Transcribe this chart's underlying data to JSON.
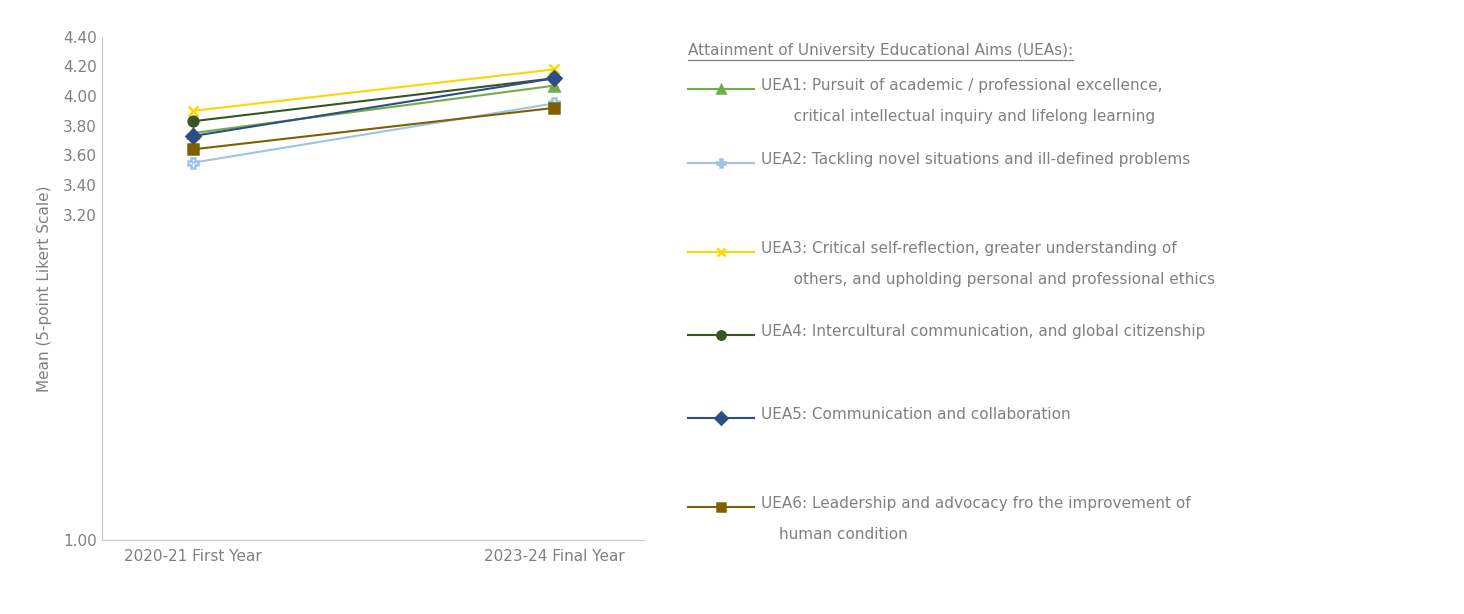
{
  "ylabel": "Mean (5-point Likert Scale)",
  "x_labels": [
    "2020-21 First Year",
    "2023-24 Final Year"
  ],
  "ylim": [
    1.0,
    4.4
  ],
  "yticks": [
    1.0,
    3.2,
    3.4,
    3.6,
    3.8,
    4.0,
    4.2,
    4.4
  ],
  "series": [
    {
      "name_line1": "UEA1: Pursuit of academic / professional excellence,",
      "name_line2": "   critical intellectual inquiry and lifelong learning",
      "values": [
        3.75,
        4.07
      ],
      "color": "#70AD47",
      "marker": "^",
      "linestyle": "-"
    },
    {
      "name_line1": "UEA2: Tackling novel situations and ill-defined problems",
      "name_line2": "",
      "values": [
        3.55,
        3.95
      ],
      "color": "#9DC3E6",
      "marker": "P",
      "linestyle": "-"
    },
    {
      "name_line1": "UEA3: Critical self-reflection, greater understanding of",
      "name_line2": "   others, and upholding personal and professional ethics",
      "values": [
        3.9,
        4.18
      ],
      "color": "#FFD700",
      "marker": "x",
      "linestyle": "-"
    },
    {
      "name_line1": "UEA4: Intercultural communication, and global citizenship",
      "name_line2": "",
      "values": [
        3.83,
        4.12
      ],
      "color": "#375623",
      "marker": "o",
      "linestyle": "-"
    },
    {
      "name_line1": "UEA5: Communication and collaboration",
      "name_line2": "",
      "values": [
        3.73,
        4.12
      ],
      "color": "#2E4D87",
      "marker": "D",
      "linestyle": "-"
    },
    {
      "name_line1": "UEA6: Leadership and advocacy fro the improvement of",
      "name_line2": "human condition",
      "values": [
        3.64,
        3.92
      ],
      "color": "#7F6000",
      "marker": "s",
      "linestyle": "-"
    }
  ],
  "legend_title": "Attainment of University Educational Aims (UEAs):",
  "background_color": "#ffffff",
  "text_color": "#808080",
  "spine_color": "#c8c8c8",
  "figsize": [
    14.64,
    6.14
  ],
  "dpi": 100
}
